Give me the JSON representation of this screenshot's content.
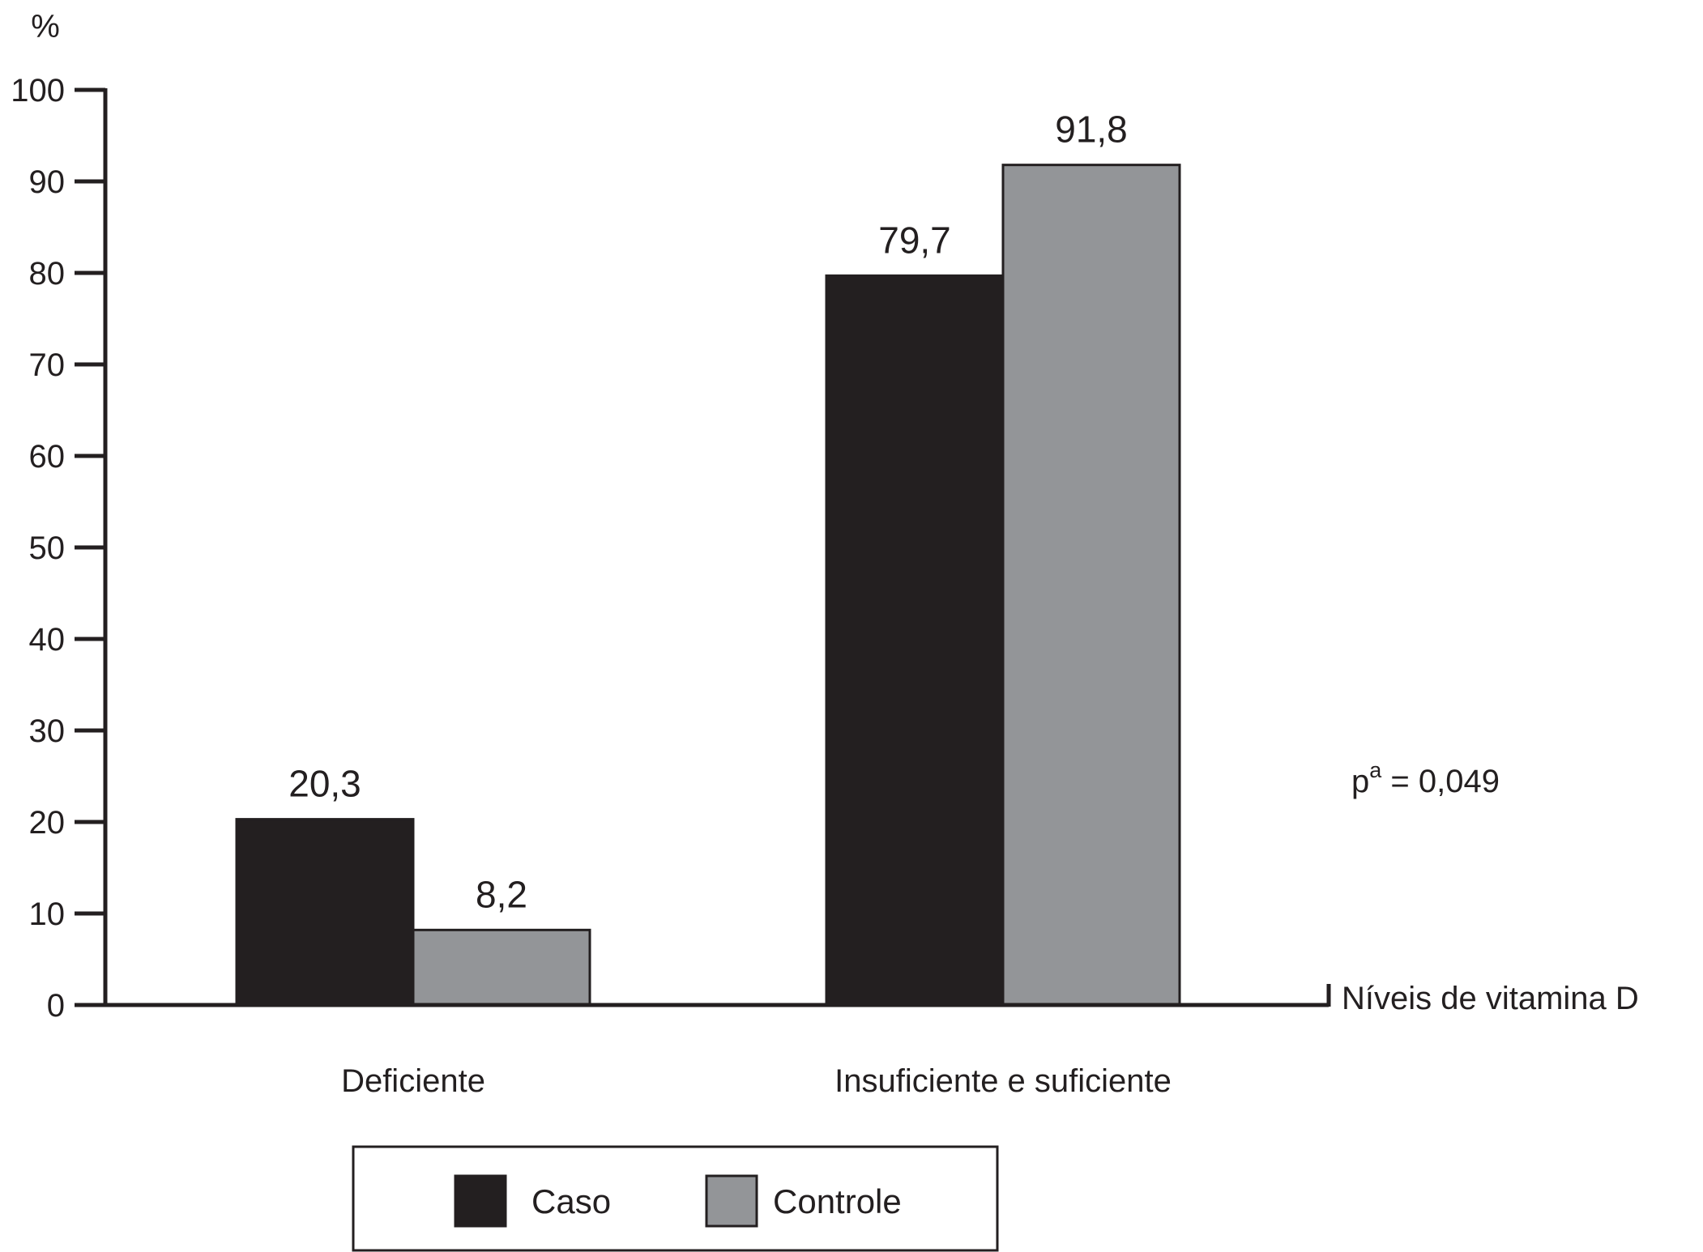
{
  "chart_data": {
    "type": "bar",
    "categories": [
      "Deficiente",
      "Insuficiente e suficiente"
    ],
    "series": [
      {
        "name": "Caso",
        "values": [
          20.3,
          79.7
        ],
        "labels": [
          "20,3",
          "79,7"
        ],
        "color": "#231f20"
      },
      {
        "name": "Controle",
        "values": [
          8.2,
          91.8
        ],
        "labels": [
          "8,2",
          "91,8"
        ],
        "color": "#939598"
      }
    ],
    "ylabel": "%",
    "xlabel": "Níveis de vitamina D",
    "ylim": [
      0,
      100
    ],
    "yticks": [
      0,
      10,
      20,
      30,
      40,
      50,
      60,
      70,
      80,
      90,
      100
    ],
    "annotation": {
      "main": "p",
      "sup": "a",
      "rest": " = 0,049"
    },
    "legend_position": "bottom-center",
    "grid": false
  }
}
